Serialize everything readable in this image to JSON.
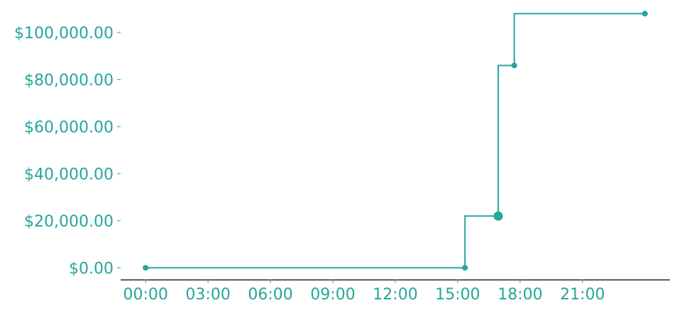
{
  "chart_data": {
    "type": "line",
    "step": "post",
    "title": "",
    "xlabel": "",
    "ylabel": "",
    "x_ticks": [
      "00:00",
      "03:00",
      "06:00",
      "09:00",
      "12:00",
      "15:00",
      "18:00",
      "21:00"
    ],
    "x_tick_hours": [
      0,
      3,
      6,
      9,
      12,
      15,
      18,
      21
    ],
    "xlim_hours": [
      -1.2,
      25.2
    ],
    "y_ticks": [
      "$0.00",
      "$20,000.00",
      "$40,000.00",
      "$60,000.00",
      "$80,000.00",
      "$100,000.00"
    ],
    "y_tick_values": [
      0,
      20000,
      40000,
      60000,
      80000,
      100000
    ],
    "ylim": [
      -5000,
      112000
    ],
    "series": [
      {
        "x_hours": [
          0.0,
          15.35,
          16.95,
          17.72,
          24.0
        ],
        "y": [
          0,
          22000,
          86000,
          108000,
          108000
        ]
      }
    ],
    "markers": [
      {
        "x_hours": 0.0,
        "y": 0,
        "size": "small"
      },
      {
        "x_hours": 15.35,
        "y": 0,
        "size": "small"
      },
      {
        "x_hours": 16.95,
        "y": 22000,
        "size": "large"
      },
      {
        "x_hours": 17.72,
        "y": 86000,
        "size": "small"
      },
      {
        "x_hours": 24.0,
        "y": 108000,
        "size": "small"
      }
    ],
    "grid": false,
    "legend": "none",
    "colors": {
      "line": "#26a69a",
      "tick_text": "#26a69a",
      "axis": "#000000"
    }
  }
}
